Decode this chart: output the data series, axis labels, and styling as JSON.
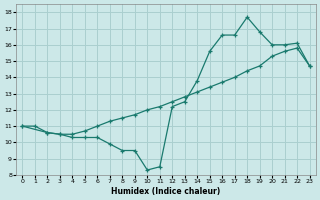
{
  "xlabel": "Humidex (Indice chaleur)",
  "bg_color": "#cce8e8",
  "grid_color": "#aacfcf",
  "line_color": "#1a7a6e",
  "xlim": [
    -0.5,
    23.5
  ],
  "ylim": [
    8,
    18.5
  ],
  "xtick_labels": [
    "0",
    "1",
    "2",
    "3",
    "4",
    "5",
    "6",
    "7",
    "8",
    "9",
    "10",
    "11",
    "12",
    "13",
    "14",
    "15",
    "16",
    "17",
    "18",
    "19",
    "20",
    "21",
    "22",
    "23"
  ],
  "xticks": [
    0,
    1,
    2,
    3,
    4,
    5,
    6,
    7,
    8,
    9,
    10,
    11,
    12,
    13,
    14,
    15,
    16,
    17,
    18,
    19,
    20,
    21,
    22,
    23
  ],
  "yticks": [
    8,
    9,
    10,
    11,
    12,
    13,
    14,
    15,
    16,
    17,
    18
  ],
  "line1_x": [
    0,
    1,
    2,
    3,
    4,
    5,
    6,
    7,
    8,
    9,
    10,
    11,
    12,
    13,
    14,
    15,
    16,
    17,
    18,
    19,
    20,
    21,
    22,
    23
  ],
  "line1_y": [
    11,
    11,
    10.6,
    10.5,
    10.3,
    10.3,
    10.3,
    9.9,
    9.5,
    9.5,
    8.3,
    8.5,
    12.2,
    12.5,
    13.8,
    15.6,
    16.6,
    16.6,
    17.7,
    16.8,
    16.0,
    16.0,
    16.1,
    14.7
  ],
  "line2_x": [
    0,
    2,
    3,
    4,
    5,
    6,
    7,
    8,
    9,
    10,
    11,
    12,
    13,
    14,
    15,
    16,
    17,
    18,
    19,
    20,
    21,
    22,
    23
  ],
  "line2_y": [
    11,
    10.6,
    10.5,
    10.5,
    10.7,
    11.0,
    11.3,
    11.5,
    11.7,
    12.0,
    12.2,
    12.5,
    12.8,
    13.1,
    13.4,
    13.7,
    14.0,
    14.4,
    14.7,
    15.3,
    15.6,
    15.8,
    14.7
  ]
}
